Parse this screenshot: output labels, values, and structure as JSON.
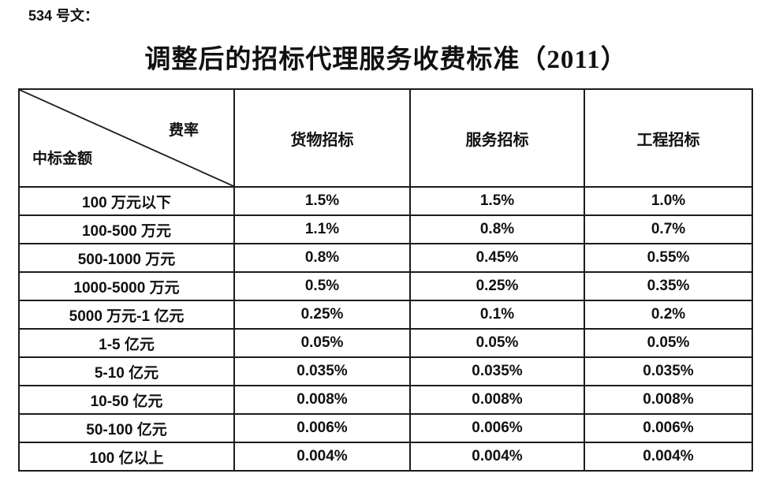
{
  "doc": {
    "ref_label": "534 号文：",
    "title": "调整后的招标代理服务收费标准（2011）"
  },
  "table": {
    "corner": {
      "top_right": "费率",
      "bottom_left": "中标金额"
    },
    "columns": [
      "货物招标",
      "服务招标",
      "工程招标"
    ],
    "rows": [
      {
        "label": "100 万元以下",
        "values": [
          "1.5%",
          "1.5%",
          "1.0%"
        ]
      },
      {
        "label": "100-500 万元",
        "values": [
          "1.1%",
          "0.8%",
          "0.7%"
        ]
      },
      {
        "label": "500-1000 万元",
        "values": [
          "0.8%",
          "0.45%",
          "0.55%"
        ]
      },
      {
        "label": "1000-5000 万元",
        "values": [
          "0.5%",
          "0.25%",
          "0.35%"
        ]
      },
      {
        "label": "5000 万元-1 亿元",
        "values": [
          "0.25%",
          "0.1%",
          "0.2%"
        ]
      },
      {
        "label": "1-5 亿元",
        "values": [
          "0.05%",
          "0.05%",
          "0.05%"
        ]
      },
      {
        "label": "5-10 亿元",
        "values": [
          "0.035%",
          "0.035%",
          "0.035%"
        ]
      },
      {
        "label": "10-50 亿元",
        "values": [
          "0.008%",
          "0.008%",
          "0.008%"
        ]
      },
      {
        "label": "50-100 亿元",
        "values": [
          "0.006%",
          "0.006%",
          "0.006%"
        ]
      },
      {
        "label": "100 亿以上",
        "values": [
          "0.004%",
          "0.004%",
          "0.004%"
        ]
      }
    ]
  }
}
